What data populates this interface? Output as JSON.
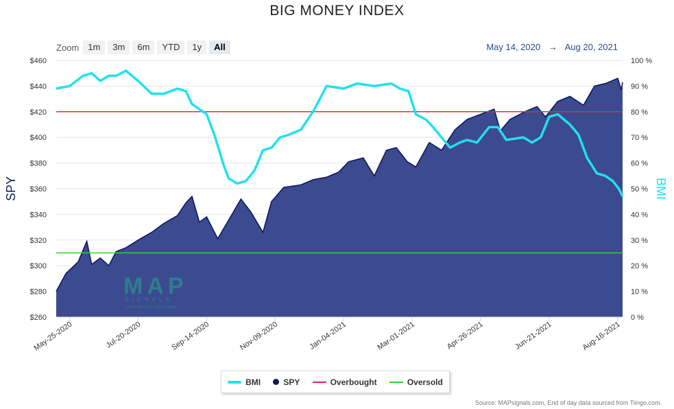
{
  "title": "BIG MONEY INDEX",
  "zoom": {
    "label": "Zoom",
    "buttons": [
      "1m",
      "3m",
      "6m",
      "YTD",
      "1y",
      "All"
    ],
    "active": "All"
  },
  "date_range": {
    "from": "May 14, 2020",
    "arrow": "→",
    "to": "Aug 20, 2021"
  },
  "logo": {
    "text": "MAP",
    "sub": "SIGNALS",
    "tag": "Tomorrow's top stocks today"
  },
  "legend": [
    {
      "name": "BMI",
      "color": "#22e0f0"
    },
    {
      "name": "SPY",
      "color": "#0b1a5e"
    },
    {
      "name": "Overbought",
      "color": "#e03030"
    },
    {
      "name": "Oversold",
      "color": "#22dd22"
    }
  ],
  "source": "Source: MAPsignals.com, End of day data sourced from Tiingo.com.",
  "chart_data": {
    "type": "area",
    "title": "BIG MONEY INDEX",
    "left_axis": {
      "label": "SPY",
      "ticks": [
        "$260",
        "$280",
        "$300",
        "$320",
        "$340",
        "$360",
        "$380",
        "$400",
        "$420",
        "$440",
        "$460"
      ],
      "range": [
        260,
        460
      ]
    },
    "right_axis": {
      "label": "BMI",
      "ticks": [
        "0 %",
        "10 %",
        "20 %",
        "30 %",
        "40 %",
        "50 %",
        "60 %",
        "70 %",
        "80 %",
        "90 %",
        "100 %"
      ],
      "range": [
        0,
        100
      ]
    },
    "x_ticks": [
      "May-25-2020",
      "Jul-20-2020",
      "Sep-14-2020",
      "Nov-09-2020",
      "Jan-04-2021",
      "Mar-01-2021",
      "Apr-26-2021",
      "Jun-21-2021",
      "Aug-16-2021"
    ],
    "x_start": "2020-05-14",
    "x_end": "2021-08-20",
    "series": [
      {
        "name": "SPY",
        "axis": "left",
        "color": "#0b1a5e",
        "points": [
          [
            "2020-05-14",
            280
          ],
          [
            "2020-05-22",
            294
          ],
          [
            "2020-06-01",
            303
          ],
          [
            "2020-06-08",
            319
          ],
          [
            "2020-06-12",
            301
          ],
          [
            "2020-06-19",
            306
          ],
          [
            "2020-06-26",
            300
          ],
          [
            "2020-07-02",
            311
          ],
          [
            "2020-07-10",
            314
          ],
          [
            "2020-07-20",
            320
          ],
          [
            "2020-07-31",
            326
          ],
          [
            "2020-08-10",
            333
          ],
          [
            "2020-08-21",
            339
          ],
          [
            "2020-08-28",
            349
          ],
          [
            "2020-09-02",
            354
          ],
          [
            "2020-09-08",
            334
          ],
          [
            "2020-09-14",
            338
          ],
          [
            "2020-09-23",
            321
          ],
          [
            "2020-10-01",
            334
          ],
          [
            "2020-10-12",
            352
          ],
          [
            "2020-10-20",
            342
          ],
          [
            "2020-10-30",
            326
          ],
          [
            "2020-11-06",
            350
          ],
          [
            "2020-11-16",
            361
          ],
          [
            "2020-11-30",
            363
          ],
          [
            "2020-12-10",
            367
          ],
          [
            "2020-12-21",
            369
          ],
          [
            "2020-12-31",
            373
          ],
          [
            "2021-01-08",
            381
          ],
          [
            "2021-01-20",
            384
          ],
          [
            "2021-01-29",
            370
          ],
          [
            "2021-02-08",
            390
          ],
          [
            "2021-02-16",
            392
          ],
          [
            "2021-02-25",
            381
          ],
          [
            "2021-03-04",
            377
          ],
          [
            "2021-03-15",
            396
          ],
          [
            "2021-03-25",
            390
          ],
          [
            "2021-04-05",
            406
          ],
          [
            "2021-04-15",
            414
          ],
          [
            "2021-04-26",
            418
          ],
          [
            "2021-05-07",
            422
          ],
          [
            "2021-05-12",
            405
          ],
          [
            "2021-05-20",
            414
          ],
          [
            "2021-06-01",
            420
          ],
          [
            "2021-06-11",
            424
          ],
          [
            "2021-06-18",
            416
          ],
          [
            "2021-06-28",
            428
          ],
          [
            "2021-07-08",
            432
          ],
          [
            "2021-07-19",
            425
          ],
          [
            "2021-07-28",
            440
          ],
          [
            "2021-08-06",
            442
          ],
          [
            "2021-08-16",
            446
          ],
          [
            "2021-08-19",
            437
          ],
          [
            "2021-08-20",
            443
          ]
        ]
      },
      {
        "name": "BMI",
        "axis": "right",
        "color": "#22e0f0",
        "points": [
          [
            "2020-05-14",
            89
          ],
          [
            "2020-05-25",
            90
          ],
          [
            "2020-06-05",
            94
          ],
          [
            "2020-06-12",
            95
          ],
          [
            "2020-06-19",
            92
          ],
          [
            "2020-06-26",
            94
          ],
          [
            "2020-07-02",
            94
          ],
          [
            "2020-07-10",
            96
          ],
          [
            "2020-07-20",
            92
          ],
          [
            "2020-07-31",
            87
          ],
          [
            "2020-08-10",
            87
          ],
          [
            "2020-08-21",
            89
          ],
          [
            "2020-08-28",
            88
          ],
          [
            "2020-09-02",
            83
          ],
          [
            "2020-09-08",
            81
          ],
          [
            "2020-09-14",
            79
          ],
          [
            "2020-09-21",
            70
          ],
          [
            "2020-09-28",
            59
          ],
          [
            "2020-10-02",
            54
          ],
          [
            "2020-10-09",
            52
          ],
          [
            "2020-10-16",
            53
          ],
          [
            "2020-10-23",
            57
          ],
          [
            "2020-10-30",
            65
          ],
          [
            "2020-11-06",
            66
          ],
          [
            "2020-11-13",
            70
          ],
          [
            "2020-11-20",
            71
          ],
          [
            "2020-11-30",
            73
          ],
          [
            "2020-12-10",
            80
          ],
          [
            "2020-12-21",
            90
          ],
          [
            "2021-01-04",
            89
          ],
          [
            "2021-01-15",
            91
          ],
          [
            "2021-01-29",
            90
          ],
          [
            "2021-02-12",
            91
          ],
          [
            "2021-02-19",
            89
          ],
          [
            "2021-02-26",
            88
          ],
          [
            "2021-03-04",
            79
          ],
          [
            "2021-03-12",
            77
          ],
          [
            "2021-03-18",
            74
          ],
          [
            "2021-03-25",
            70
          ],
          [
            "2021-04-01",
            66
          ],
          [
            "2021-04-09",
            68
          ],
          [
            "2021-04-15",
            69
          ],
          [
            "2021-04-23",
            68
          ],
          [
            "2021-05-03",
            74
          ],
          [
            "2021-05-10",
            74
          ],
          [
            "2021-05-17",
            69
          ],
          [
            "2021-05-31",
            70
          ],
          [
            "2021-06-07",
            68
          ],
          [
            "2021-06-14",
            70
          ],
          [
            "2021-06-21",
            78
          ],
          [
            "2021-06-28",
            79
          ],
          [
            "2021-07-08",
            75
          ],
          [
            "2021-07-15",
            71
          ],
          [
            "2021-07-22",
            62
          ],
          [
            "2021-07-30",
            56
          ],
          [
            "2021-08-06",
            55
          ],
          [
            "2021-08-12",
            53
          ],
          [
            "2021-08-17",
            50
          ],
          [
            "2021-08-20",
            47
          ]
        ]
      },
      {
        "name": "Overbought",
        "axis": "right",
        "color": "#e03030",
        "value": 80
      },
      {
        "name": "Oversold",
        "axis": "right",
        "color": "#22dd22",
        "value": 25
      }
    ],
    "legend_position": "bottom-center",
    "grid": true
  }
}
